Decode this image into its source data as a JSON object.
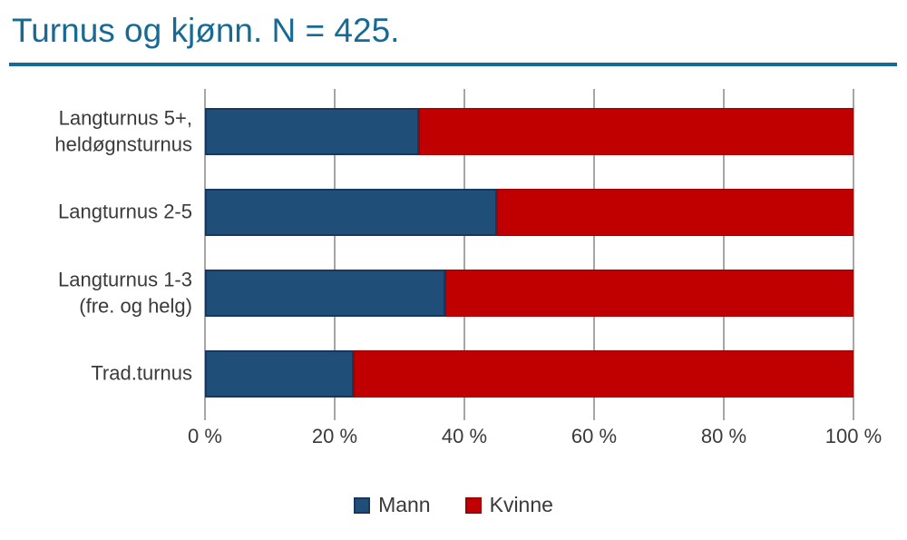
{
  "chart_data": {
    "type": "bar",
    "variant": "horizontal-stacked-100pct",
    "title": "Turnus og kjønn. N = 425.",
    "categories": [
      "Langturnus 5+,\nheldøgnsturnus",
      "Langturnus 2-5",
      "Langturnus 1-3\n(fre. og helg)",
      "Trad.turnus"
    ],
    "series": [
      {
        "name": "Mann",
        "color": "#1F4E79",
        "border_color": "#17375E",
        "values": [
          33,
          45,
          37,
          23
        ]
      },
      {
        "name": "Kvinne",
        "color": "#C00000",
        "border_color": "#9E0000",
        "values": [
          67,
          55,
          63,
          77
        ]
      }
    ],
    "x_ticks": [
      "0 %",
      "20 %",
      "40 %",
      "60 %",
      "80 %",
      "100 %"
    ],
    "xlim": [
      0,
      100
    ],
    "grid": true,
    "gridline_color": "#A6A6A6",
    "legend_position": "bottom",
    "title_color": "#176A94",
    "rule_color": "#176A94",
    "text_color": "#3A3A3A"
  }
}
